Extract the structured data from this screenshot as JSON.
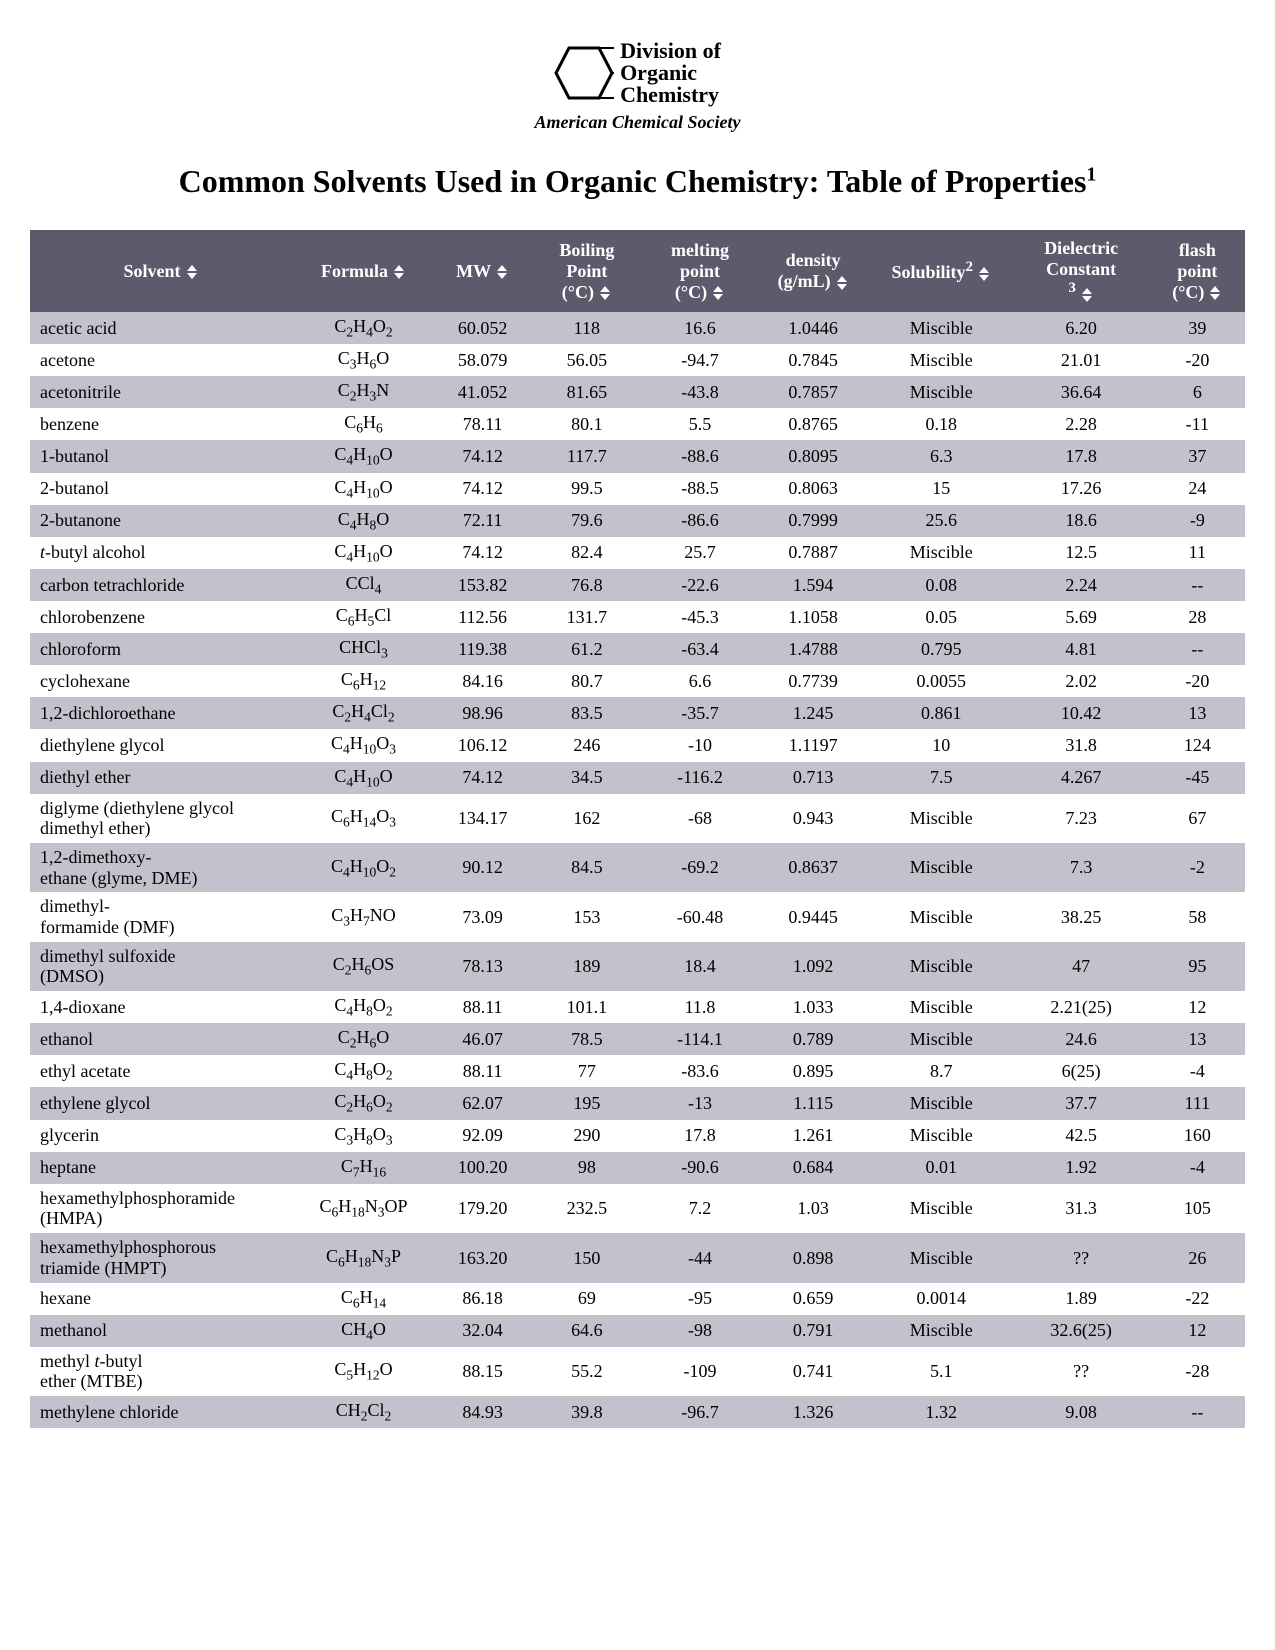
{
  "logo": {
    "line1": "Division of",
    "line2": "Organic",
    "line3": "Chemistry",
    "subtitle": "American Chemical Society"
  },
  "title_html": "Common Solvents Used in Organic Chemistry: Table of Properties<sup>1</sup>",
  "table": {
    "header_bg": "#5b5b6b",
    "header_fg": "#ffffff",
    "row_odd_bg": "#c2c2cc",
    "row_even_bg": "#ffffff",
    "columns": [
      {
        "key": "solvent",
        "label_html": "Solvent",
        "sortable": true
      },
      {
        "key": "formula",
        "label_html": "Formula",
        "sortable": true
      },
      {
        "key": "mw",
        "label_html": "MW",
        "sortable": true
      },
      {
        "key": "bp",
        "label_html": "Boiling<br>Point<br>(°C)",
        "sortable": true
      },
      {
        "key": "mp",
        "label_html": "melting<br>point<br>(°C)",
        "sortable": true
      },
      {
        "key": "density",
        "label_html": "density<br>(g/mL)",
        "sortable": true
      },
      {
        "key": "solubility",
        "label_html": "Solubility<sup>2</sup>",
        "sortable": true
      },
      {
        "key": "dielectric",
        "label_html": "Dielectric<br>Constant<br><sup>3</sup>",
        "sortable": true
      },
      {
        "key": "flash",
        "label_html": "flash<br>point<br>(°C)",
        "sortable": true
      }
    ],
    "rows": [
      {
        "solvent": "acetic acid",
        "formula_html": "C<sub>2</sub>H<sub>4</sub>O<sub>2</sub>",
        "mw": "60.052",
        "bp": "118",
        "mp": "16.6",
        "density": "1.0446",
        "solubility": "Miscible",
        "dielectric": "6.20",
        "flash": "39"
      },
      {
        "solvent": "acetone",
        "formula_html": "C<sub>3</sub>H<sub>6</sub>O",
        "mw": "58.079",
        "bp": "56.05",
        "mp": "-94.7",
        "density": "0.7845",
        "solubility": "Miscible",
        "dielectric": "21.01",
        "flash": "-20"
      },
      {
        "solvent": "acetonitrile",
        "formula_html": "C<sub>2</sub>H<sub>3</sub>N",
        "mw": "41.052",
        "bp": "81.65",
        "mp": "-43.8",
        "density": "0.7857",
        "solubility": "Miscible",
        "dielectric": "36.64",
        "flash": "6"
      },
      {
        "solvent": "benzene",
        "formula_html": "C<sub>6</sub>H<sub>6</sub>",
        "mw": "78.11",
        "bp": "80.1",
        "mp": "5.5",
        "density": "0.8765",
        "solubility": "0.18",
        "dielectric": "2.28",
        "flash": "-11"
      },
      {
        "solvent": "1-butanol",
        "formula_html": "C<sub>4</sub>H<sub>10</sub>O",
        "mw": "74.12",
        "bp": "117.7",
        "mp": "-88.6",
        "density": "0.8095",
        "solubility": "6.3",
        "dielectric": "17.8",
        "flash": "37"
      },
      {
        "solvent": "2-butanol",
        "formula_html": "C<sub>4</sub>H<sub>10</sub>O",
        "mw": "74.12",
        "bp": "99.5",
        "mp": "-88.5",
        "density": "0.8063",
        "solubility": "15",
        "dielectric": "17.26",
        "flash": "24"
      },
      {
        "solvent": "2-butanone",
        "formula_html": "C<sub>4</sub>H<sub>8</sub>O",
        "mw": "72.11",
        "bp": "79.6",
        "mp": "-86.6",
        "density": "0.7999",
        "solubility": "25.6",
        "dielectric": "18.6",
        "flash": "-9"
      },
      {
        "solvent_html": "<i>t</i>-butyl alcohol",
        "formula_html": "C<sub>4</sub>H<sub>10</sub>O",
        "mw": "74.12",
        "bp": "82.4",
        "mp": "25.7",
        "density": "0.7887",
        "solubility": "Miscible",
        "dielectric": "12.5",
        "flash": "11"
      },
      {
        "solvent": "carbon tetrachloride",
        "formula_html": "CCl<sub>4</sub>",
        "mw": "153.82",
        "bp": "76.8",
        "mp": "-22.6",
        "density": "1.594",
        "solubility": "0.08",
        "dielectric": "2.24",
        "flash": "--"
      },
      {
        "solvent": "chlorobenzene",
        "formula_html": "C<sub>6</sub>H<sub>5</sub>Cl",
        "mw": "112.56",
        "bp": "131.7",
        "mp": "-45.3",
        "density": "1.1058",
        "solubility": "0.05",
        "dielectric": "5.69",
        "flash": "28"
      },
      {
        "solvent": "chloroform",
        "formula_html": "CHCl<sub>3</sub>",
        "mw": "119.38",
        "bp": "61.2",
        "mp": "-63.4",
        "density": "1.4788",
        "solubility": "0.795",
        "dielectric": "4.81",
        "flash": "--"
      },
      {
        "solvent": "cyclohexane",
        "formula_html": "C<sub>6</sub>H<sub>12</sub>",
        "mw": "84.16",
        "bp": "80.7",
        "mp": "6.6",
        "density": "0.7739",
        "solubility": "0.0055",
        "dielectric": "2.02",
        "flash": "-20"
      },
      {
        "solvent": "1,2-dichloroethane",
        "formula_html": "C<sub>2</sub>H<sub>4</sub>Cl<sub>2</sub>",
        "mw": "98.96",
        "bp": "83.5",
        "mp": "-35.7",
        "density": "1.245",
        "solubility": "0.861",
        "dielectric": "10.42",
        "flash": "13"
      },
      {
        "solvent": "diethylene glycol",
        "formula_html": "C<sub>4</sub>H<sub>10</sub>O<sub>3</sub>",
        "mw": "106.12",
        "bp": "246",
        "mp": "-10",
        "density": "1.1197",
        "solubility": "10",
        "dielectric": "31.8",
        "flash": "124"
      },
      {
        "solvent": "diethyl ether",
        "formula_html": "C<sub>4</sub>H<sub>10</sub>O",
        "mw": "74.12",
        "bp": "34.5",
        "mp": "-116.2",
        "density": "0.713",
        "solubility": "7.5",
        "dielectric": "4.267",
        "flash": "-45"
      },
      {
        "solvent": "diglyme (diethylene glycol dimethyl ether)",
        "formula_html": "C<sub>6</sub>H<sub>14</sub>O<sub>3</sub>",
        "mw": "134.17",
        "bp": "162",
        "mp": "-68",
        "density": "0.943",
        "solubility": "Miscible",
        "dielectric": "7.23",
        "flash": "67"
      },
      {
        "solvent_html": "1,2-dimethoxy-<br>ethane (glyme, DME)",
        "formula_html": "C<sub>4</sub>H<sub>10</sub>O<sub>2</sub>",
        "mw": "90.12",
        "bp": "84.5",
        "mp": "-69.2",
        "density": "0.8637",
        "solubility": "Miscible",
        "dielectric": "7.3",
        "flash": "-2"
      },
      {
        "solvent_html": "dimethyl-<br>formamide (DMF)",
        "formula_html": "C<sub>3</sub>H<sub>7</sub>NO",
        "mw": "73.09",
        "bp": "153",
        "mp": "-60.48",
        "density": "0.9445",
        "solubility": "Miscible",
        "dielectric": "38.25",
        "flash": "58"
      },
      {
        "solvent_html": "dimethyl sulfoxide<br>(DMSO)",
        "formula_html": "C<sub>2</sub>H<sub>6</sub>OS",
        "mw": "78.13",
        "bp": "189",
        "mp": "18.4",
        "density": "1.092",
        "solubility": "Miscible",
        "dielectric": "47",
        "flash": "95"
      },
      {
        "solvent": "1,4-dioxane",
        "formula_html": "C<sub>4</sub>H<sub>8</sub>O<sub>2</sub>",
        "mw": "88.11",
        "bp": "101.1",
        "mp": "11.8",
        "density": "1.033",
        "solubility": "Miscible",
        "dielectric": "2.21(25)",
        "flash": "12"
      },
      {
        "solvent": "ethanol",
        "formula_html": "C<sub>2</sub>H<sub>6</sub>O",
        "mw": "46.07",
        "bp": "78.5",
        "mp": "-114.1",
        "density": "0.789",
        "solubility": "Miscible",
        "dielectric": "24.6",
        "flash": "13"
      },
      {
        "solvent": "ethyl acetate",
        "formula_html": "C<sub>4</sub>H<sub>8</sub>O<sub>2</sub>",
        "mw": "88.11",
        "bp": "77",
        "mp": "-83.6",
        "density": "0.895",
        "solubility": "8.7",
        "dielectric": "6(25)",
        "flash": "-4"
      },
      {
        "solvent": "ethylene glycol",
        "formula_html": "C<sub>2</sub>H<sub>6</sub>O<sub>2</sub>",
        "mw": "62.07",
        "bp": "195",
        "mp": "-13",
        "density": "1.115",
        "solubility": "Miscible",
        "dielectric": "37.7",
        "flash": "111"
      },
      {
        "solvent": "glycerin",
        "formula_html": "C<sub>3</sub>H<sub>8</sub>O<sub>3</sub>",
        "mw": "92.09",
        "bp": "290",
        "mp": "17.8",
        "density": "1.261",
        "solubility": "Miscible",
        "dielectric": "42.5",
        "flash": "160"
      },
      {
        "solvent": "heptane",
        "formula_html": "C<sub>7</sub>H<sub>16</sub>",
        "mw": "100.20",
        "bp": "98",
        "mp": "-90.6",
        "density": "0.684",
        "solubility": "0.01",
        "dielectric": "1.92",
        "flash": "-4"
      },
      {
        "solvent_html": "hexamethylphosphoramide<br>(HMPA)",
        "formula_html": "C<sub>6</sub>H<sub>18</sub>N<sub>3</sub>OP",
        "mw": "179.20",
        "bp": "232.5",
        "mp": "7.2",
        "density": "1.03",
        "solubility": "Miscible",
        "dielectric": "31.3",
        "flash": "105"
      },
      {
        "solvent_html": "hexamethylphosphorous<br>triamide (HMPT)",
        "formula_html": "C<sub>6</sub>H<sub>18</sub>N<sub>3</sub>P",
        "mw": "163.20",
        "bp": "150",
        "mp": "-44",
        "density": "0.898",
        "solubility": "Miscible",
        "dielectric": "??",
        "flash": "26"
      },
      {
        "solvent": "hexane",
        "formula_html": "C<sub>6</sub>H<sub>14</sub>",
        "mw": "86.18",
        "bp": "69",
        "mp": "-95",
        "density": "0.659",
        "solubility": "0.0014",
        "dielectric": "1.89",
        "flash": "-22"
      },
      {
        "solvent": "methanol",
        "formula_html": "CH<sub>4</sub>O",
        "mw": "32.04",
        "bp": "64.6",
        "mp": "-98",
        "density": "0.791",
        "solubility": "Miscible",
        "dielectric": "32.6(25)",
        "flash": "12"
      },
      {
        "solvent_html": "methyl <i>t</i>-butyl<br>ether (MTBE)",
        "formula_html": "C<sub>5</sub>H<sub>12</sub>O",
        "mw": "88.15",
        "bp": "55.2",
        "mp": "-109",
        "density": "0.741",
        "solubility": "5.1",
        "dielectric": "??",
        "flash": "-28"
      },
      {
        "solvent": "methylene chloride",
        "formula_html": "CH<sub>2</sub>Cl<sub>2</sub>",
        "mw": "84.93",
        "bp": "39.8",
        "mp": "-96.7",
        "density": "1.326",
        "solubility": "1.32",
        "dielectric": "9.08",
        "flash": "--"
      }
    ]
  }
}
